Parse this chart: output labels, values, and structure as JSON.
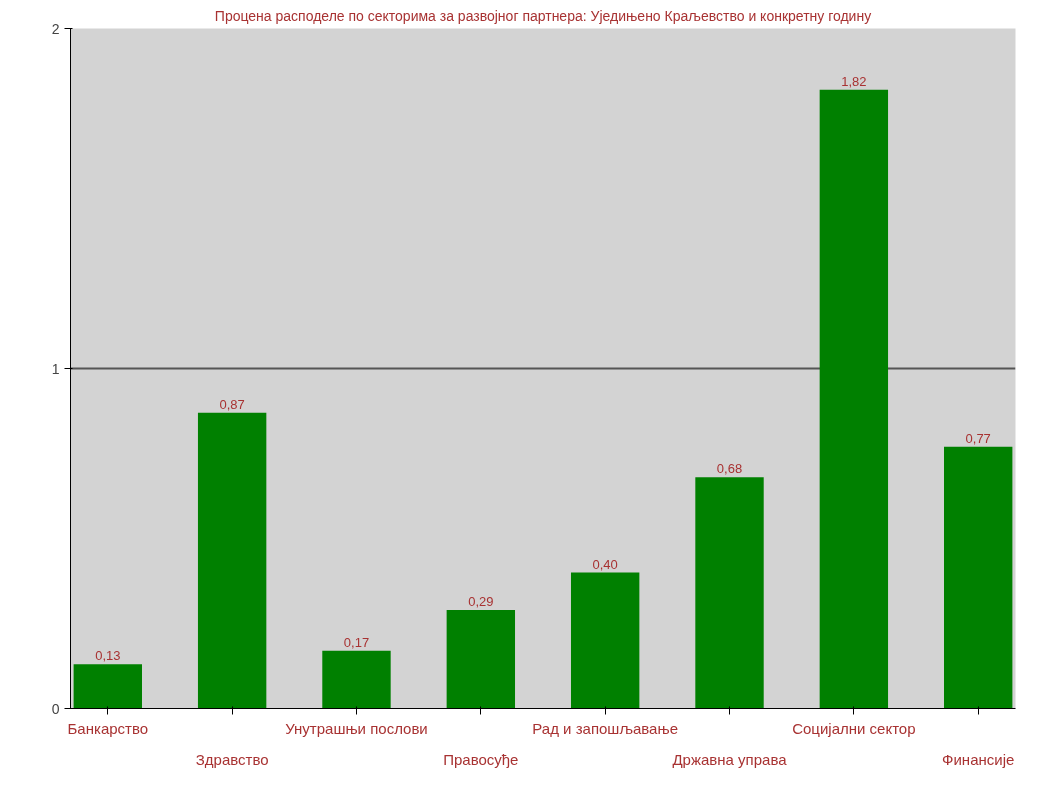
{
  "chart_data": {
    "type": "bar",
    "title": "Процена расподеле по секторима за развојног партнера: Уједињено Краљевство и конкретну годину",
    "categories": [
      "Банкарство",
      "Здравство",
      "Унутрашњи послови",
      "Правосуђе",
      "Рад и запошљавање",
      "Државна управа",
      "Социјални сектор",
      "Финансије"
    ],
    "values": [
      0.13,
      0.87,
      0.17,
      0.29,
      0.4,
      0.68,
      1.82,
      0.77
    ],
    "value_labels": [
      "0,13",
      "0,87",
      "0,17",
      "0,29",
      "0,40",
      "0,68",
      "1,82",
      "0,77"
    ],
    "color": "#008000",
    "ylim": [
      0,
      2
    ],
    "yticks": [
      0,
      1,
      2
    ],
    "grid": "y"
  }
}
